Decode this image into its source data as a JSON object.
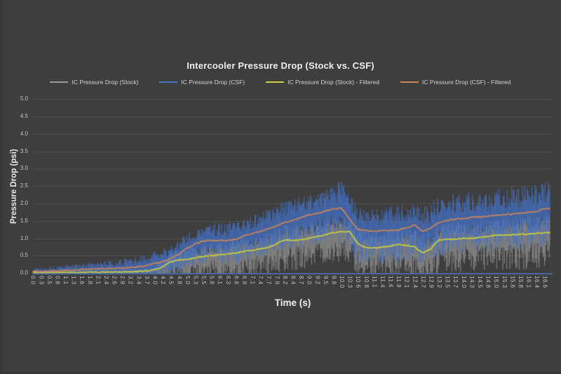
{
  "window": {
    "background_color": "#3e3e3e",
    "gridline_color": "rgba(255,255,255,0.10)",
    "tick_text_color": "#c6c6c6",
    "axis_line_color": "#4a73c0"
  },
  "chart_data": {
    "type": "line",
    "title": "Intercooler Pressure Drop (Stock vs. CSF)",
    "xlabel": "Time (s)",
    "ylabel": "Pressure Drop (psi)",
    "ylim": [
      0,
      5
    ],
    "grid": "horizontal",
    "legend_position": "top",
    "y_ticks": [
      "0.0",
      "0.5",
      "1.0",
      "1.5",
      "2.0",
      "2.5",
      "3.0",
      "3.5",
      "4.0",
      "4.5",
      "5.0"
    ],
    "x_tick_labels": [
      "0.0",
      "0.3",
      "0.5",
      "0.8",
      "1.1",
      "1.3",
      "1.6",
      "1.8",
      "2.1",
      "2.4",
      "2.6",
      "2.9",
      "3.2",
      "3.4",
      "3.7",
      "4.0",
      "4.2",
      "4.5",
      "4.8",
      "5.0",
      "5.3",
      "5.5",
      "5.8",
      "6.1",
      "6.3",
      "6.6",
      "6.9",
      "7.1",
      "7.4",
      "7.7",
      "7.9",
      "8.2",
      "8.4",
      "8.7",
      "9.0",
      "9.2",
      "9.5",
      "9.8",
      "10.0",
      "10.3",
      "10.6",
      "10.8",
      "11.1",
      "11.4",
      "11.6",
      "11.9",
      "12.1",
      "12.4",
      "12.7",
      "12.9",
      "13.2",
      "13.5",
      "13.7",
      "14.0",
      "14.3",
      "14.5",
      "14.8",
      "15.0",
      "15.3",
      "15.6",
      "15.8",
      "16.1",
      "16.4",
      "16.6"
    ],
    "series": [
      {
        "name": "IC Pressure Drop (Stock)",
        "style": "raw-noisy",
        "color": "#9b9b9b",
        "mean": [
          0.02,
          0.02,
          0.02,
          0.02,
          0.02,
          0.02,
          0.02,
          0.03,
          0.03,
          0.03,
          0.03,
          0.04,
          0.04,
          0.05,
          0.06,
          0.1,
          0.18,
          0.33,
          0.38,
          0.4,
          0.44,
          0.48,
          0.5,
          0.52,
          0.55,
          0.58,
          0.62,
          0.66,
          0.7,
          0.74,
          0.85,
          0.95,
          0.94,
          0.96,
          1.0,
          1.05,
          1.1,
          1.16,
          1.19,
          1.2,
          0.85,
          0.73,
          0.73,
          0.75,
          0.78,
          0.82,
          0.8,
          0.75,
          0.58,
          0.7,
          0.95,
          0.97,
          0.98,
          1.0,
          1.0,
          1.02,
          1.05,
          1.09,
          1.1,
          1.1,
          1.12,
          1.12,
          1.14,
          1.16
        ],
        "amp": [
          0.03,
          0.03,
          0.03,
          0.04,
          0.04,
          0.04,
          0.05,
          0.05,
          0.05,
          0.06,
          0.06,
          0.07,
          0.08,
          0.09,
          0.1,
          0.14,
          0.2,
          0.28,
          0.3,
          0.32,
          0.34,
          0.36,
          0.36,
          0.38,
          0.38,
          0.4,
          0.4,
          0.42,
          0.42,
          0.44,
          0.45,
          0.46,
          0.46,
          0.46,
          0.45,
          0.45,
          0.45,
          0.46,
          0.46,
          0.46,
          0.48,
          0.48,
          0.48,
          0.48,
          0.5,
          0.5,
          0.5,
          0.5,
          0.5,
          0.5,
          0.52,
          0.52,
          0.52,
          0.52,
          0.52,
          0.52,
          0.54,
          0.54,
          0.54,
          0.54,
          0.54,
          0.55,
          0.55,
          0.55
        ]
      },
      {
        "name": "IC Pressure Drop (CSF)",
        "style": "raw-noisy",
        "color": "#4472c4",
        "mean": [
          0.05,
          0.05,
          0.06,
          0.07,
          0.08,
          0.09,
          0.1,
          0.11,
          0.12,
          0.13,
          0.14,
          0.15,
          0.16,
          0.18,
          0.22,
          0.28,
          0.33,
          0.42,
          0.55,
          0.72,
          0.85,
          0.92,
          0.94,
          0.93,
          0.94,
          0.97,
          1.08,
          1.13,
          1.2,
          1.28,
          1.35,
          1.45,
          1.52,
          1.6,
          1.68,
          1.72,
          1.78,
          1.84,
          1.87,
          1.55,
          1.26,
          1.22,
          1.2,
          1.22,
          1.22,
          1.25,
          1.3,
          1.38,
          1.2,
          1.3,
          1.45,
          1.52,
          1.55,
          1.57,
          1.6,
          1.62,
          1.63,
          1.66,
          1.68,
          1.7,
          1.72,
          1.75,
          1.78,
          1.85
        ],
        "amp": [
          0.12,
          0.13,
          0.14,
          0.15,
          0.16,
          0.17,
          0.18,
          0.19,
          0.2,
          0.22,
          0.24,
          0.26,
          0.28,
          0.3,
          0.32,
          0.35,
          0.37,
          0.4,
          0.42,
          0.44,
          0.46,
          0.48,
          0.5,
          0.52,
          0.54,
          0.55,
          0.56,
          0.58,
          0.6,
          0.6,
          0.62,
          0.62,
          0.63,
          0.64,
          0.65,
          0.66,
          0.68,
          0.72,
          0.8,
          0.75,
          0.72,
          0.7,
          0.7,
          0.7,
          0.7,
          0.72,
          0.72,
          0.72,
          0.72,
          0.74,
          0.74,
          0.74,
          0.75,
          0.75,
          0.75,
          0.75,
          0.76,
          0.76,
          0.76,
          0.78,
          0.78,
          0.78,
          0.8,
          0.8
        ]
      },
      {
        "name": "IC Pressure Drop (Stock) - Filtered",
        "style": "line",
        "color": "#c9ce3b",
        "values": [
          0.02,
          0.02,
          0.02,
          0.02,
          0.02,
          0.02,
          0.02,
          0.03,
          0.03,
          0.03,
          0.03,
          0.04,
          0.04,
          0.05,
          0.06,
          0.1,
          0.18,
          0.33,
          0.38,
          0.4,
          0.44,
          0.48,
          0.5,
          0.52,
          0.55,
          0.58,
          0.62,
          0.66,
          0.7,
          0.74,
          0.85,
          0.95,
          0.94,
          0.96,
          1.0,
          1.05,
          1.1,
          1.16,
          1.19,
          1.2,
          0.85,
          0.73,
          0.73,
          0.75,
          0.78,
          0.82,
          0.8,
          0.75,
          0.58,
          0.7,
          0.95,
          0.97,
          0.98,
          1.0,
          1.0,
          1.02,
          1.05,
          1.09,
          1.1,
          1.1,
          1.12,
          1.12,
          1.14,
          1.16
        ]
      },
      {
        "name": "IC Pressure Drop (CSF) - Filtered",
        "style": "line",
        "color": "#cd8456",
        "values": [
          0.05,
          0.05,
          0.06,
          0.07,
          0.08,
          0.09,
          0.1,
          0.11,
          0.12,
          0.13,
          0.14,
          0.15,
          0.16,
          0.18,
          0.22,
          0.28,
          0.33,
          0.42,
          0.55,
          0.72,
          0.85,
          0.92,
          0.94,
          0.93,
          0.94,
          0.97,
          1.08,
          1.13,
          1.2,
          1.28,
          1.35,
          1.45,
          1.52,
          1.6,
          1.68,
          1.72,
          1.78,
          1.84,
          1.87,
          1.55,
          1.26,
          1.22,
          1.2,
          1.22,
          1.22,
          1.25,
          1.3,
          1.38,
          1.2,
          1.3,
          1.45,
          1.52,
          1.55,
          1.57,
          1.6,
          1.62,
          1.63,
          1.66,
          1.68,
          1.7,
          1.72,
          1.75,
          1.78,
          1.85
        ]
      }
    ]
  }
}
